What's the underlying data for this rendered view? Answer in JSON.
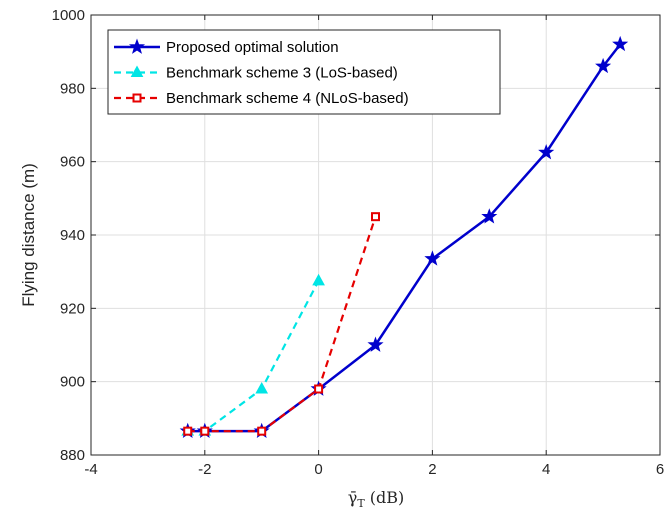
{
  "chart_data": {
    "type": "line",
    "xlabel_symbol": "γ̄",
    "xlabel_subscript": "T",
    "xlabel_unit": "(dB)",
    "ylabel": "Flying distance (m)",
    "xlim": [
      -4,
      6
    ],
    "ylim": [
      880,
      1000
    ],
    "xticks": [
      -4,
      -2,
      0,
      2,
      4,
      6
    ],
    "yticks": [
      880,
      900,
      920,
      940,
      960,
      980,
      1000
    ],
    "xtick_labels": [
      "-4",
      "-2",
      "0",
      "2",
      "4",
      "6"
    ],
    "ytick_labels": [
      "880",
      "900",
      "920",
      "940",
      "960",
      "980",
      "1000"
    ],
    "grid": true,
    "legend_position": "top-left",
    "series": [
      {
        "name": "Proposed optimal solution",
        "color": "#0000cc",
        "dash": "solid",
        "marker": "star",
        "x": [
          -2.3,
          -2,
          -1,
          0,
          1,
          2,
          3,
          4,
          5,
          5.3
        ],
        "y": [
          886.5,
          886.5,
          886.5,
          898,
          910,
          933.5,
          945,
          962.5,
          986,
          992
        ]
      },
      {
        "name": "Benchmark scheme 3 (LoS-based)",
        "color": "#00e5e5",
        "dash": "dashed",
        "marker": "triangle",
        "x": [
          -2.3,
          -2,
          -1,
          0
        ],
        "y": [
          886.5,
          886.5,
          898,
          927.5
        ]
      },
      {
        "name": "Benchmark scheme 4 (NLoS-based)",
        "color": "#e60000",
        "dash": "dashed",
        "marker": "square",
        "x": [
          -2.3,
          -2,
          -1,
          0,
          1
        ],
        "y": [
          886.5,
          886.5,
          886.5,
          898,
          945
        ]
      }
    ]
  }
}
